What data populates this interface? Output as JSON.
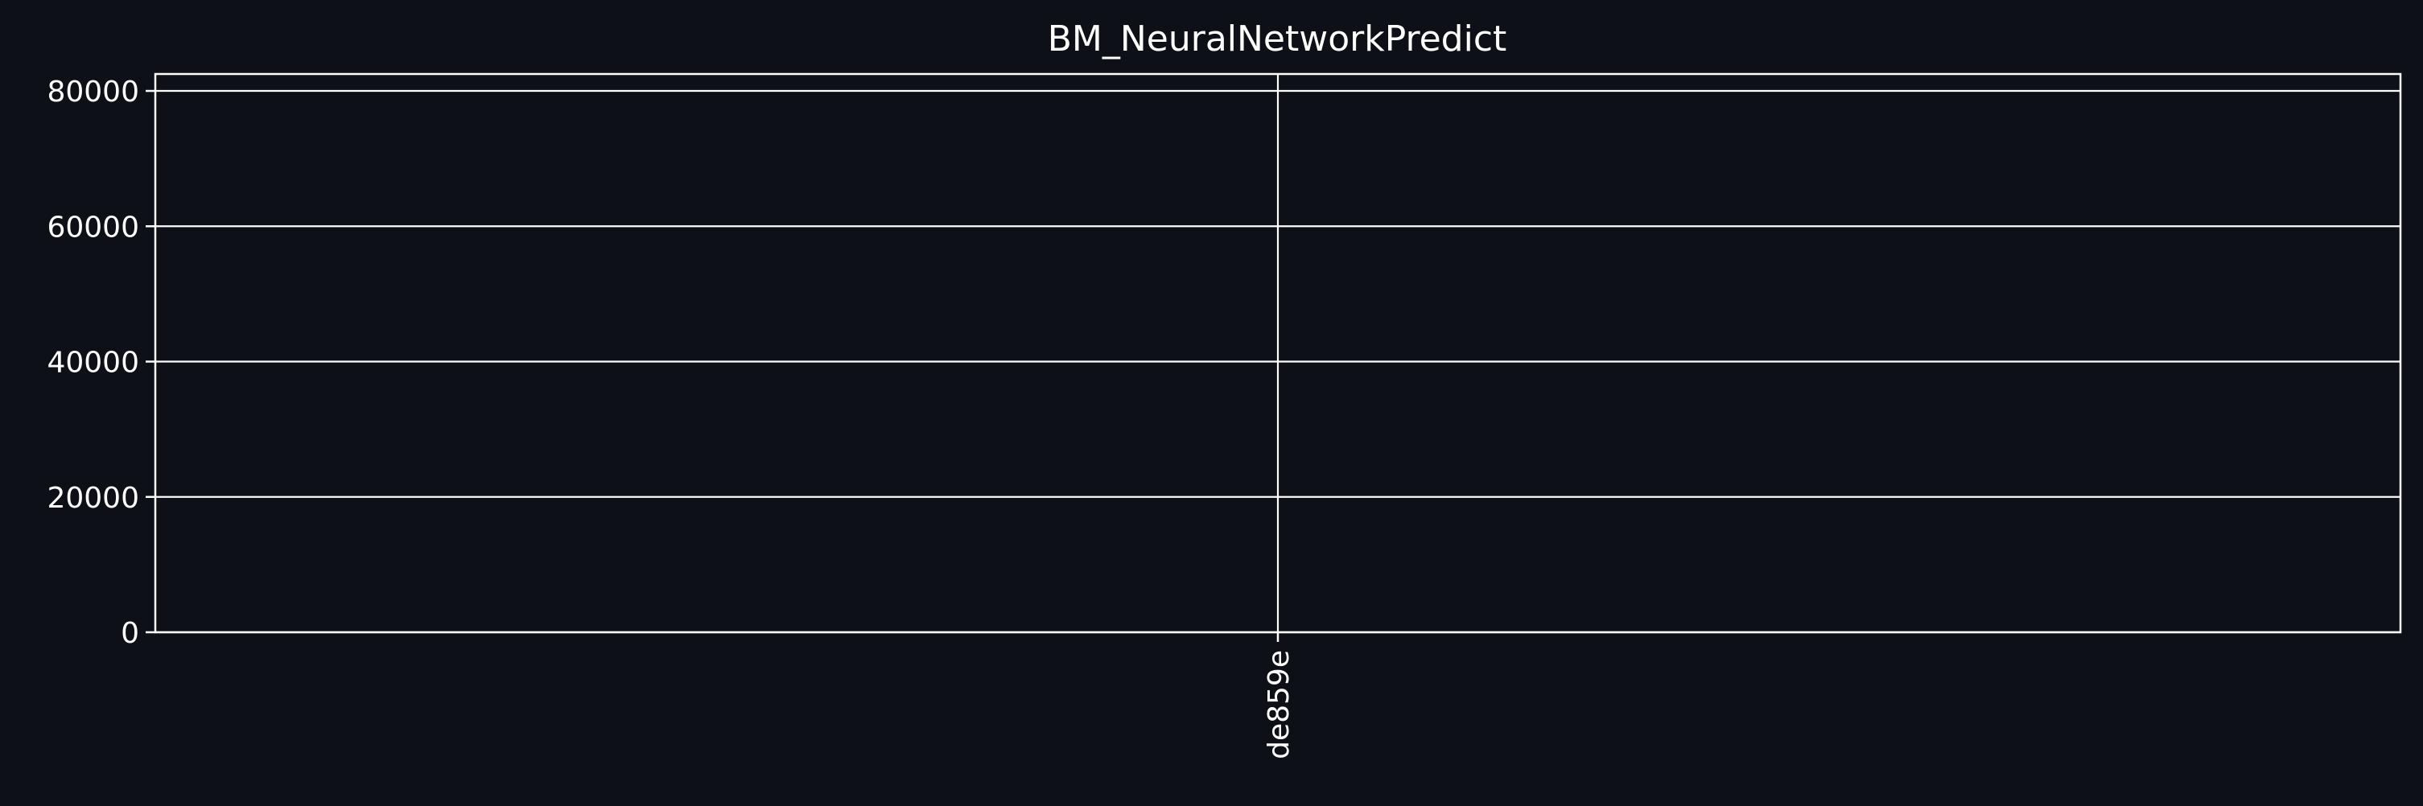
{
  "chart_data": {
    "type": "bar",
    "title": "BM_NeuralNetworkPredict",
    "xlabel": "",
    "ylabel": "",
    "categories": [
      "de859e"
    ],
    "series": [
      {
        "values": [
          0
        ]
      }
    ],
    "ylim": [
      0,
      82500
    ],
    "yticks": [
      0,
      20000,
      40000,
      60000,
      80000
    ],
    "ytick_labels": [
      "0",
      "20000",
      "40000",
      "60000",
      "80000"
    ],
    "grid": true,
    "x_tick_rotation": "vertical",
    "colors": {
      "background": "#0d1117",
      "foreground": "#ffffff"
    }
  }
}
